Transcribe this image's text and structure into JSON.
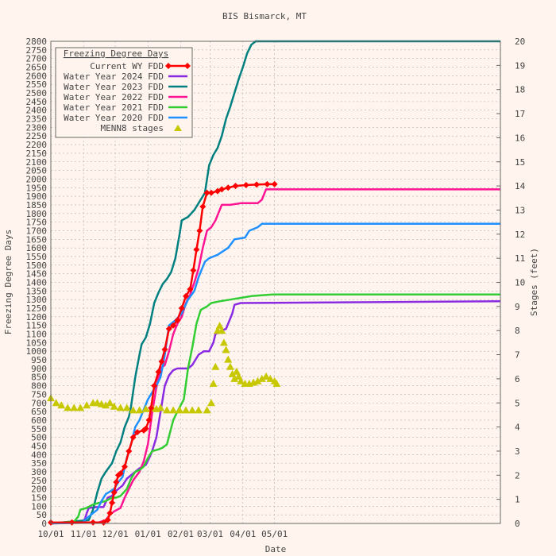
{
  "chart_data": {
    "type": "line",
    "title": "BIS Bismarck, MT",
    "xlabel": "Date",
    "ylabel": "Freezing Degree Days",
    "y2label": "Stages (feet)",
    "x_domain_days": [
      0,
      426
    ],
    "x_ticks": [
      {
        "day": 0,
        "label": "10/01"
      },
      {
        "day": 31,
        "label": "11/01"
      },
      {
        "day": 61,
        "label": "12/01"
      },
      {
        "day": 92,
        "label": "01/01"
      },
      {
        "day": 123,
        "label": "02/01"
      },
      {
        "day": 151,
        "label": "03/01"
      },
      {
        "day": 182,
        "label": "04/01"
      },
      {
        "day": 212,
        "label": "05/01"
      }
    ],
    "ylim": [
      0,
      2800
    ],
    "y_tick_step": 50,
    "y2lim": [
      0,
      20
    ],
    "y2_tick_step": 1,
    "grid": true,
    "legend": {
      "title": "Freezing Degree Days",
      "placement": "top-left"
    },
    "series": [
      {
        "name": "Current WY FDD",
        "color": "#ff0000",
        "axis": "y1",
        "marker": "diamond",
        "points": [
          [
            0,
            5
          ],
          [
            20,
            6
          ],
          [
            40,
            6
          ],
          [
            50,
            5
          ],
          [
            54,
            20
          ],
          [
            56,
            60
          ],
          [
            58,
            120
          ],
          [
            60,
            180
          ],
          [
            62,
            240
          ],
          [
            64,
            280
          ],
          [
            66,
            290
          ],
          [
            70,
            330
          ],
          [
            74,
            420
          ],
          [
            78,
            500
          ],
          [
            82,
            530
          ],
          [
            88,
            540
          ],
          [
            90,
            550
          ],
          [
            93,
            600
          ],
          [
            95,
            670
          ],
          [
            98,
            800
          ],
          [
            102,
            880
          ],
          [
            105,
            940
          ],
          [
            108,
            1010
          ],
          [
            112,
            1130
          ],
          [
            116,
            1150
          ],
          [
            120,
            1180
          ],
          [
            124,
            1250
          ],
          [
            128,
            1320
          ],
          [
            132,
            1360
          ],
          [
            135,
            1470
          ],
          [
            138,
            1590
          ],
          [
            141,
            1700
          ],
          [
            144,
            1840
          ],
          [
            148,
            1920
          ],
          [
            152,
            1920
          ],
          [
            158,
            1930
          ],
          [
            162,
            1940
          ],
          [
            168,
            1950
          ],
          [
            175,
            1960
          ],
          [
            185,
            1965
          ],
          [
            195,
            1968
          ],
          [
            205,
            1970
          ],
          [
            212,
            1970
          ]
        ]
      },
      {
        "name": "Water Year 2024 FDD",
        "color": "#8a2be2",
        "axis": "y1",
        "points": [
          [
            0,
            0
          ],
          [
            28,
            10
          ],
          [
            32,
            20
          ],
          [
            34,
            60
          ],
          [
            36,
            90
          ],
          [
            44,
            95
          ],
          [
            50,
            95
          ],
          [
            54,
            150
          ],
          [
            58,
            160
          ],
          [
            60,
            180
          ],
          [
            64,
            200
          ],
          [
            68,
            220
          ],
          [
            72,
            260
          ],
          [
            78,
            290
          ],
          [
            84,
            320
          ],
          [
            90,
            340
          ],
          [
            94,
            390
          ],
          [
            96,
            420
          ],
          [
            100,
            500
          ],
          [
            104,
            650
          ],
          [
            108,
            800
          ],
          [
            112,
            860
          ],
          [
            116,
            890
          ],
          [
            120,
            900
          ],
          [
            130,
            900
          ],
          [
            134,
            920
          ],
          [
            140,
            980
          ],
          [
            145,
            1000
          ],
          [
            150,
            1000
          ],
          [
            154,
            1050
          ],
          [
            156,
            1100
          ],
          [
            162,
            1120
          ],
          [
            166,
            1130
          ],
          [
            172,
            1220
          ],
          [
            174,
            1270
          ],
          [
            180,
            1280
          ],
          [
            426,
            1290
          ]
        ]
      },
      {
        "name": "Water Year 2023 FDD",
        "color": "#008080",
        "axis": "y1",
        "points": [
          [
            0,
            0
          ],
          [
            36,
            20
          ],
          [
            40,
            80
          ],
          [
            44,
            180
          ],
          [
            48,
            260
          ],
          [
            52,
            300
          ],
          [
            58,
            350
          ],
          [
            62,
            420
          ],
          [
            66,
            470
          ],
          [
            70,
            560
          ],
          [
            74,
            620
          ],
          [
            76,
            680
          ],
          [
            80,
            850
          ],
          [
            84,
            980
          ],
          [
            86,
            1040
          ],
          [
            90,
            1080
          ],
          [
            94,
            1160
          ],
          [
            98,
            1280
          ],
          [
            102,
            1340
          ],
          [
            106,
            1390
          ],
          [
            110,
            1420
          ],
          [
            114,
            1460
          ],
          [
            118,
            1540
          ],
          [
            122,
            1680
          ],
          [
            124,
            1760
          ],
          [
            130,
            1780
          ],
          [
            136,
            1820
          ],
          [
            142,
            1880
          ],
          [
            146,
            1920
          ],
          [
            150,
            2080
          ],
          [
            154,
            2140
          ],
          [
            158,
            2180
          ],
          [
            162,
            2250
          ],
          [
            166,
            2350
          ],
          [
            170,
            2420
          ],
          [
            174,
            2500
          ],
          [
            178,
            2580
          ],
          [
            182,
            2650
          ],
          [
            186,
            2730
          ],
          [
            190,
            2780
          ],
          [
            194,
            2800
          ],
          [
            426,
            2800
          ]
        ]
      },
      {
        "name": "Water Year 2022 FDD",
        "color": "#ff1493",
        "axis": "y1",
        "points": [
          [
            0,
            0
          ],
          [
            45,
            5
          ],
          [
            52,
            20
          ],
          [
            56,
            50
          ],
          [
            60,
            70
          ],
          [
            66,
            90
          ],
          [
            70,
            150
          ],
          [
            74,
            200
          ],
          [
            78,
            250
          ],
          [
            84,
            300
          ],
          [
            88,
            360
          ],
          [
            92,
            460
          ],
          [
            96,
            640
          ],
          [
            100,
            790
          ],
          [
            104,
            900
          ],
          [
            108,
            920
          ],
          [
            112,
            1000
          ],
          [
            116,
            1100
          ],
          [
            120,
            1160
          ],
          [
            124,
            1200
          ],
          [
            128,
            1280
          ],
          [
            132,
            1330
          ],
          [
            136,
            1400
          ],
          [
            140,
            1480
          ],
          [
            144,
            1600
          ],
          [
            148,
            1700
          ],
          [
            152,
            1720
          ],
          [
            156,
            1760
          ],
          [
            162,
            1850
          ],
          [
            170,
            1850
          ],
          [
            180,
            1860
          ],
          [
            196,
            1860
          ],
          [
            200,
            1880
          ],
          [
            204,
            1940
          ],
          [
            426,
            1940
          ]
        ]
      },
      {
        "name": "Water Year 2021 FDD",
        "color": "#32cd32",
        "axis": "y1",
        "points": [
          [
            0,
            0
          ],
          [
            22,
            10
          ],
          [
            26,
            40
          ],
          [
            28,
            80
          ],
          [
            34,
            90
          ],
          [
            40,
            110
          ],
          [
            46,
            120
          ],
          [
            52,
            130
          ],
          [
            58,
            150
          ],
          [
            62,
            150
          ],
          [
            66,
            160
          ],
          [
            72,
            200
          ],
          [
            76,
            260
          ],
          [
            80,
            300
          ],
          [
            84,
            310
          ],
          [
            88,
            330
          ],
          [
            92,
            380
          ],
          [
            96,
            420
          ],
          [
            102,
            430
          ],
          [
            106,
            440
          ],
          [
            110,
            460
          ],
          [
            116,
            600
          ],
          [
            120,
            650
          ],
          [
            126,
            720
          ],
          [
            130,
            900
          ],
          [
            134,
            1020
          ],
          [
            138,
            1160
          ],
          [
            142,
            1240
          ],
          [
            148,
            1260
          ],
          [
            152,
            1280
          ],
          [
            160,
            1290
          ],
          [
            170,
            1300
          ],
          [
            180,
            1310
          ],
          [
            190,
            1320
          ],
          [
            210,
            1330
          ],
          [
            426,
            1330
          ]
        ]
      },
      {
        "name": "Water Year 2020 FDD",
        "color": "#1e90ff",
        "axis": "y1",
        "points": [
          [
            0,
            0
          ],
          [
            30,
            5
          ],
          [
            34,
            30
          ],
          [
            38,
            50
          ],
          [
            44,
            80
          ],
          [
            48,
            130
          ],
          [
            52,
            170
          ],
          [
            56,
            185
          ],
          [
            60,
            200
          ],
          [
            64,
            240
          ],
          [
            68,
            270
          ],
          [
            72,
            380
          ],
          [
            76,
            460
          ],
          [
            80,
            560
          ],
          [
            84,
            600
          ],
          [
            88,
            660
          ],
          [
            92,
            720
          ],
          [
            96,
            760
          ],
          [
            100,
            800
          ],
          [
            104,
            850
          ],
          [
            108,
            980
          ],
          [
            112,
            1150
          ],
          [
            118,
            1180
          ],
          [
            124,
            1220
          ],
          [
            130,
            1300
          ],
          [
            136,
            1350
          ],
          [
            140,
            1430
          ],
          [
            146,
            1520
          ],
          [
            150,
            1540
          ],
          [
            158,
            1560
          ],
          [
            168,
            1600
          ],
          [
            174,
            1650
          ],
          [
            184,
            1660
          ],
          [
            188,
            1700
          ],
          [
            196,
            1720
          ],
          [
            200,
            1740
          ],
          [
            426,
            1740
          ]
        ]
      },
      {
        "name": "MENN8 stages",
        "color": "#c8c800",
        "axis": "y2",
        "marker": "triangle",
        "points": [
          [
            0,
            5.2
          ],
          [
            5,
            5.0
          ],
          [
            10,
            4.9
          ],
          [
            16,
            4.8
          ],
          [
            22,
            4.8
          ],
          [
            28,
            4.8
          ],
          [
            34,
            4.9
          ],
          [
            40,
            5.0
          ],
          [
            44,
            5.0
          ],
          [
            48,
            4.95
          ],
          [
            52,
            4.9
          ],
          [
            56,
            5.0
          ],
          [
            60,
            4.85
          ],
          [
            66,
            4.8
          ],
          [
            72,
            4.8
          ],
          [
            78,
            4.7
          ],
          [
            84,
            4.7
          ],
          [
            90,
            4.75
          ],
          [
            96,
            4.8
          ],
          [
            100,
            4.75
          ],
          [
            104,
            4.8
          ],
          [
            110,
            4.7
          ],
          [
            116,
            4.7
          ],
          [
            122,
            4.7
          ],
          [
            128,
            4.7
          ],
          [
            134,
            4.7
          ],
          [
            140,
            4.7
          ],
          [
            148,
            4.7
          ],
          [
            152,
            5.0
          ],
          [
            154,
            5.8
          ],
          [
            156,
            6.5
          ],
          [
            158,
            8.0
          ],
          [
            160,
            8.2
          ],
          [
            162,
            8.0
          ],
          [
            164,
            7.5
          ],
          [
            166,
            7.2
          ],
          [
            168,
            6.8
          ],
          [
            170,
            6.5
          ],
          [
            172,
            6.2
          ],
          [
            174,
            6.0
          ],
          [
            176,
            6.3
          ],
          [
            178,
            6.1
          ],
          [
            180,
            5.9
          ],
          [
            184,
            5.8
          ],
          [
            188,
            5.8
          ],
          [
            192,
            5.85
          ],
          [
            196,
            5.9
          ],
          [
            200,
            6.0
          ],
          [
            204,
            6.1
          ],
          [
            208,
            6.0
          ],
          [
            212,
            5.9
          ],
          [
            214,
            5.8
          ]
        ]
      }
    ]
  }
}
